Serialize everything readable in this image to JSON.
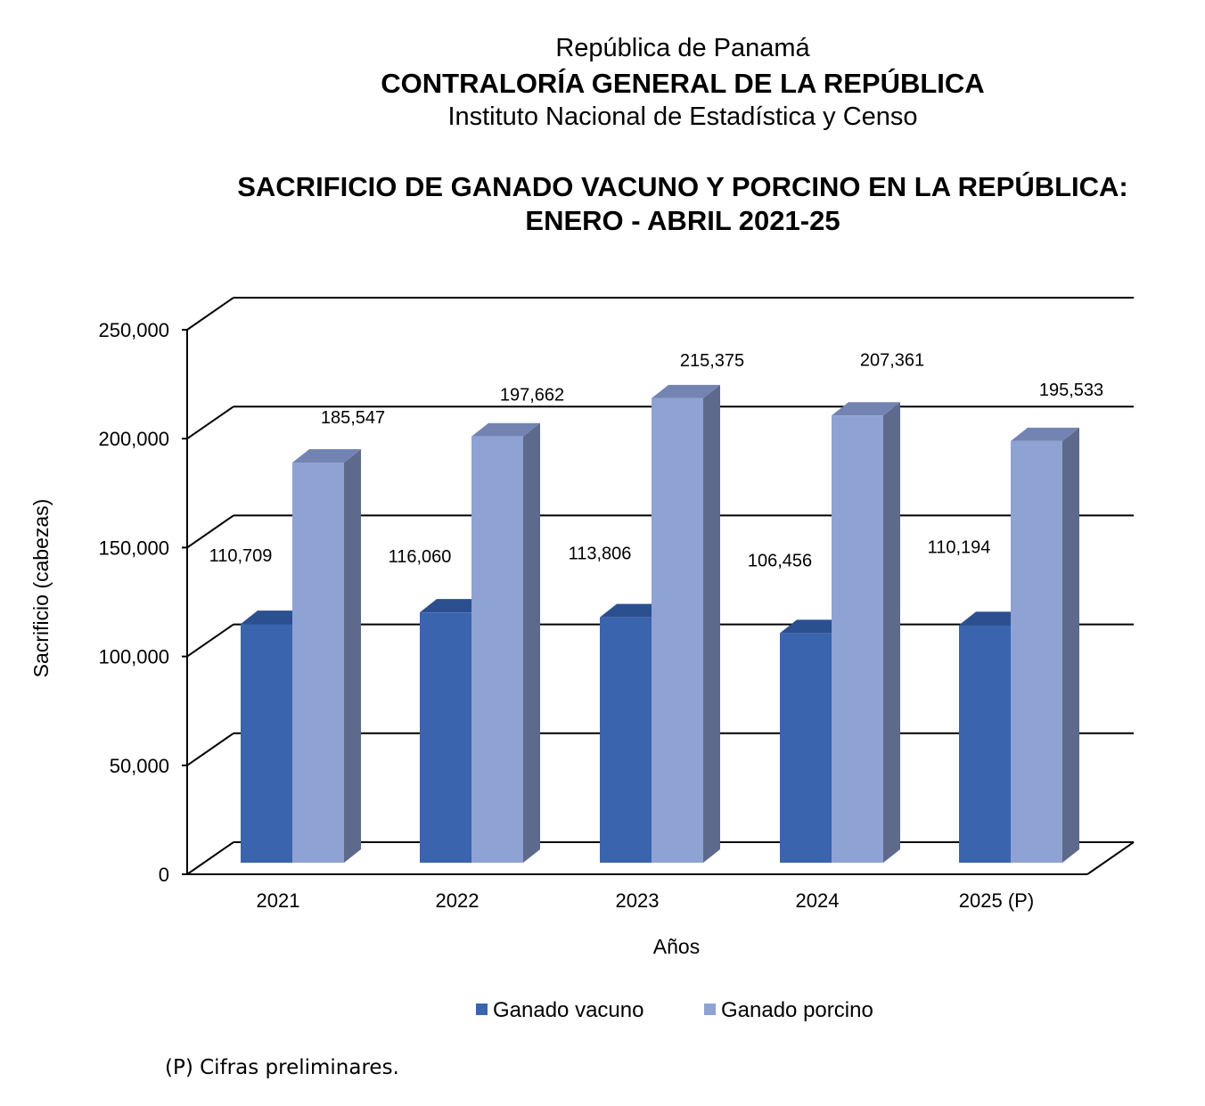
{
  "header": {
    "line1": "República de Panamá",
    "line2": "CONTRALORÍA GENERAL DE LA REPÚBLICA",
    "line3": "Instituto Nacional de Estadística y Censo"
  },
  "footnote": "(P) Cifras preliminares.",
  "colors": {
    "vacuno": "#3a64ae",
    "vacuno_side": "#294a86",
    "vacuno_top": "#2c4f8f",
    "porcino": "#8fa2d4",
    "porcino_side": "#5d6a8c",
    "porcino_top": "#7384b2"
  },
  "chart_data": {
    "type": "bar",
    "title": "SACRIFICIO DE GANADO VACUNO Y PORCINO EN LA REPÚBLICA:",
    "subtitle": "ENERO - ABRIL 2021-25",
    "xlabel": "Años",
    "ylabel": "Sacrificio (cabezas)",
    "ylim": [
      0,
      250000
    ],
    "yticks": [
      0,
      50000,
      100000,
      150000,
      200000,
      250000
    ],
    "ytick_labels": [
      "0",
      "50,000",
      "100,000",
      "150,000",
      "200,000",
      "250,000"
    ],
    "categories": [
      "2021",
      "2022",
      "2023",
      "2024",
      "2025 (P)"
    ],
    "series": [
      {
        "name": "Ganado vacuno",
        "values": [
          110709,
          116060,
          113806,
          106456,
          110194
        ],
        "labels": [
          "110,709",
          "116,060",
          "113,806",
          "106,456",
          "110,194"
        ]
      },
      {
        "name": "Ganado porcino",
        "values": [
          185547,
          197662,
          215375,
          207361,
          195533
        ],
        "labels": [
          "185,547",
          "197,662",
          "215,375",
          "207,361",
          "195,533"
        ]
      }
    ],
    "grid": true,
    "legend": "bottom"
  }
}
